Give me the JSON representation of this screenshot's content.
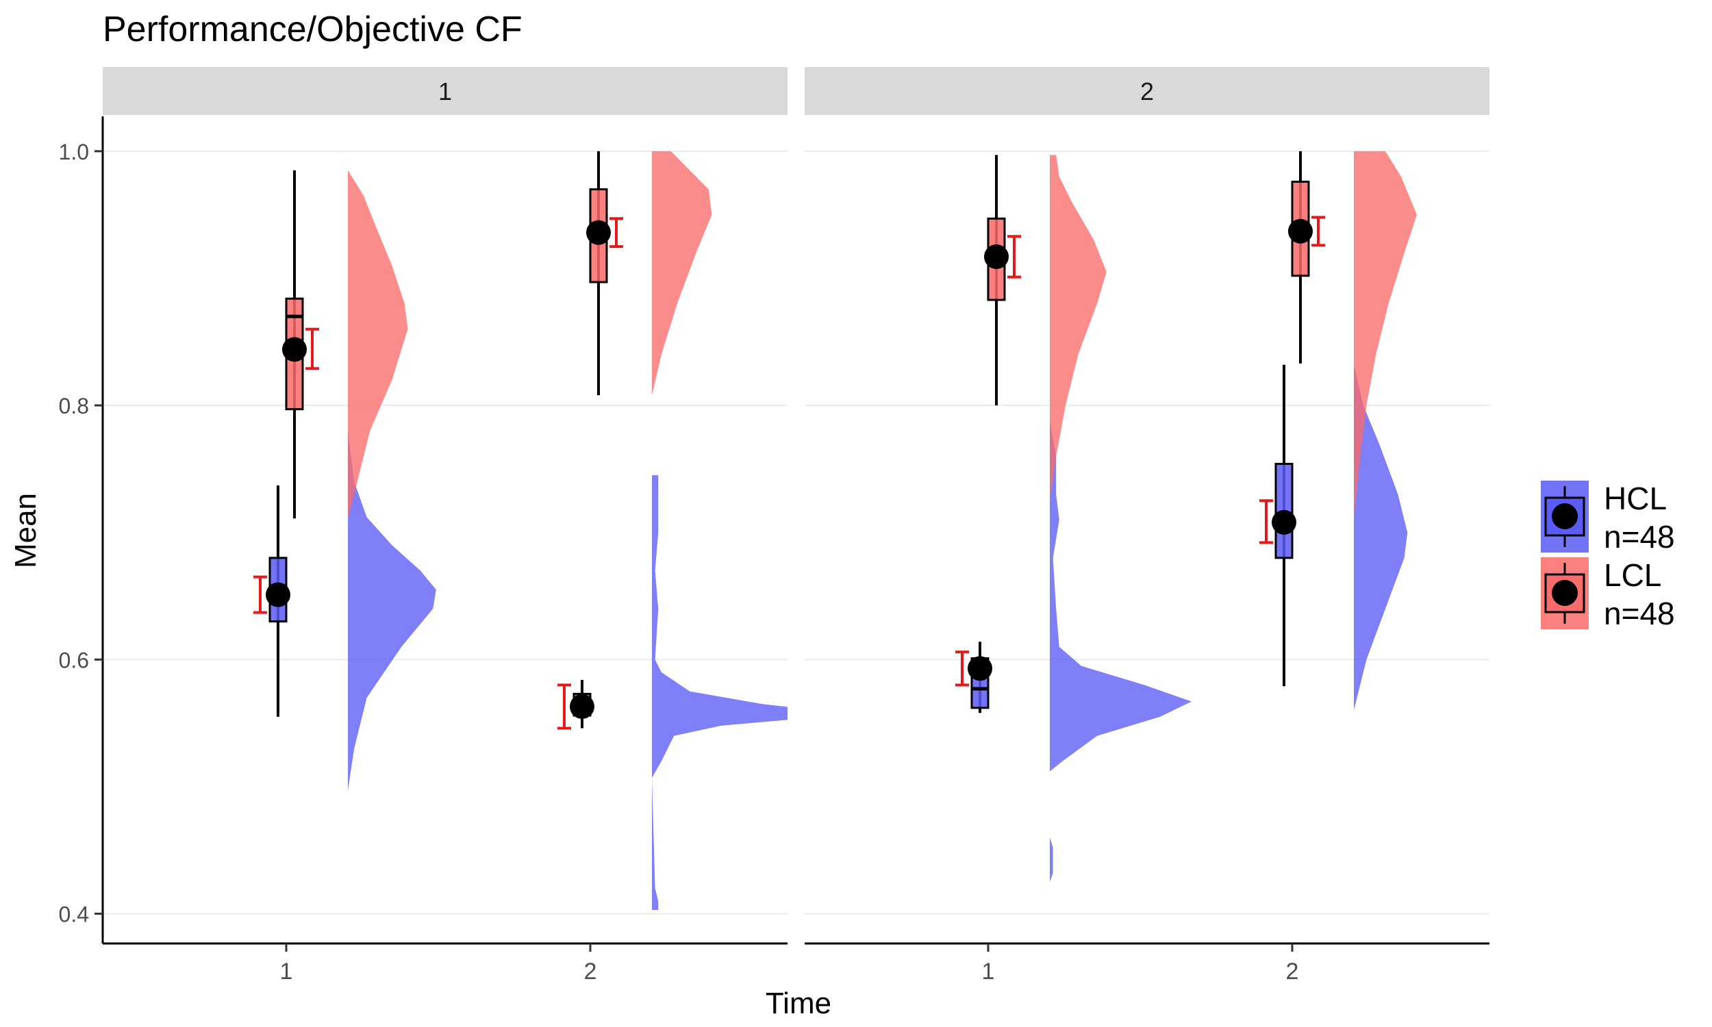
{
  "chart_data": {
    "type": "raincloud",
    "title": "Performance/Objective CF",
    "xlabel": "Time",
    "ylabel": "Mean",
    "ylim": [
      0.375,
      1.0
    ],
    "yticks": [
      "0.4",
      "0.6",
      "0.8",
      "1.0"
    ],
    "ytick_values": [
      0.4,
      0.6,
      0.8,
      1.0
    ],
    "xticks": [
      "1",
      "2"
    ],
    "grid": true,
    "legend_position": "right",
    "colors": {
      "HCL": "#5B5BF5",
      "LCL": "#FA6B6B",
      "errorbar": "#E31A1C"
    },
    "legend": [
      {
        "key": "HCL",
        "line1": "HCL",
        "line2": " n=48",
        "color": "#5B5BF5"
      },
      {
        "key": "LCL",
        "line1": "LCL",
        "line2": " n=48",
        "color": "#FA6B6B"
      }
    ],
    "panels": [
      {
        "label": "1",
        "groups": [
          {
            "group": "HCL",
            "time": 1,
            "mean": 0.651,
            "ci": [
              0.637,
              0.665
            ],
            "box": {
              "min": 0.555,
              "q1": 0.63,
              "median": 0.65,
              "q3": 0.68,
              "max": 0.737
            },
            "density": [
              [
                0.497,
                0.0
              ],
              [
                0.53,
                0.02
              ],
              [
                0.57,
                0.06
              ],
              [
                0.61,
                0.17
              ],
              [
                0.64,
                0.27
              ],
              [
                0.655,
                0.28
              ],
              [
                0.67,
                0.23
              ],
              [
                0.69,
                0.14
              ],
              [
                0.712,
                0.06
              ],
              [
                0.74,
                0.02
              ],
              [
                0.78,
                0.0
              ]
            ]
          },
          {
            "group": "HCL",
            "time": 2,
            "mean": 0.563,
            "ci": [
              0.546,
              0.58
            ],
            "box": {
              "min": 0.546,
              "q1": 0.556,
              "median": 0.562,
              "q3": 0.573,
              "max": 0.584
            },
            "density": [
              [
                0.403,
                0.02
              ],
              [
                0.41,
                0.02
              ],
              [
                0.42,
                0.01
              ],
              [
                0.507,
                0.0
              ],
              [
                0.52,
                0.03
              ],
              [
                0.54,
                0.07
              ],
              [
                0.548,
                0.22
              ],
              [
                0.553,
                0.45
              ],
              [
                0.558,
                0.6
              ],
              [
                0.565,
                0.35
              ],
              [
                0.575,
                0.12
              ],
              [
                0.59,
                0.03
              ],
              [
                0.6,
                0.01
              ],
              [
                0.64,
                0.02
              ],
              [
                0.67,
                0.01
              ],
              [
                0.7,
                0.02
              ],
              [
                0.745,
                0.02
              ]
            ]
          },
          {
            "group": "LCL",
            "time": 1,
            "mean": 0.844,
            "ci": [
              0.829,
              0.86
            ],
            "box": {
              "min": 0.711,
              "q1": 0.797,
              "median": 0.87,
              "q3": 0.884,
              "max": 0.985
            },
            "density": [
              [
                0.711,
                0.0
              ],
              [
                0.74,
                0.03
              ],
              [
                0.78,
                0.07
              ],
              [
                0.82,
                0.14
              ],
              [
                0.86,
                0.19
              ],
              [
                0.88,
                0.18
              ],
              [
                0.91,
                0.14
              ],
              [
                0.94,
                0.09
              ],
              [
                0.965,
                0.05
              ],
              [
                0.985,
                0.0
              ]
            ]
          },
          {
            "group": "LCL",
            "time": 2,
            "mean": 0.936,
            "ci": [
              0.925,
              0.947
            ],
            "box": {
              "min": 0.808,
              "q1": 0.897,
              "median": 0.935,
              "q3": 0.97,
              "max": 1.0
            },
            "density": [
              [
                0.808,
                0.0
              ],
              [
                0.84,
                0.03
              ],
              [
                0.88,
                0.08
              ],
              [
                0.92,
                0.14
              ],
              [
                0.95,
                0.19
              ],
              [
                0.97,
                0.18
              ],
              [
                0.985,
                0.12
              ],
              [
                1.0,
                0.06
              ]
            ]
          }
        ]
      },
      {
        "label": "2",
        "groups": [
          {
            "group": "HCL",
            "time": 1,
            "mean": 0.593,
            "ci": [
              0.58,
              0.606
            ],
            "box": {
              "min": 0.558,
              "q1": 0.562,
              "median": 0.577,
              "q3": 0.601,
              "max": 0.614
            },
            "density": [
              [
                0.425,
                0.0
              ],
              [
                0.432,
                0.01
              ],
              [
                0.44,
                0.01
              ],
              [
                0.452,
                0.01
              ],
              [
                0.46,
                0.0
              ],
              [
                0.512,
                0.0
              ],
              [
                0.52,
                0.04
              ],
              [
                0.54,
                0.15
              ],
              [
                0.555,
                0.35
              ],
              [
                0.567,
                0.45
              ],
              [
                0.58,
                0.3
              ],
              [
                0.595,
                0.1
              ],
              [
                0.61,
                0.03
              ],
              [
                0.64,
                0.02
              ],
              [
                0.68,
                0.01
              ],
              [
                0.71,
                0.03
              ],
              [
                0.73,
                0.02
              ],
              [
                0.76,
                0.02
              ],
              [
                0.788,
                0.0
              ]
            ]
          },
          {
            "group": "HCL",
            "time": 2,
            "mean": 0.708,
            "ci": [
              0.692,
              0.725
            ],
            "box": {
              "min": 0.579,
              "q1": 0.68,
              "median": 0.708,
              "q3": 0.754,
              "max": 0.832
            },
            "density": [
              [
                0.56,
                0.0
              ],
              [
                0.6,
                0.04
              ],
              [
                0.64,
                0.1
              ],
              [
                0.68,
                0.16
              ],
              [
                0.7,
                0.17
              ],
              [
                0.73,
                0.14
              ],
              [
                0.77,
                0.08
              ],
              [
                0.8,
                0.03
              ],
              [
                0.832,
                0.0
              ]
            ]
          },
          {
            "group": "LCL",
            "time": 1,
            "mean": 0.917,
            "ci": [
              0.901,
              0.933
            ],
            "box": {
              "min": 0.8,
              "q1": 0.883,
              "median": 0.915,
              "q3": 0.947,
              "max": 0.997
            },
            "density": [
              [
                0.725,
                0.0
              ],
              [
                0.76,
                0.02
              ],
              [
                0.8,
                0.05
              ],
              [
                0.84,
                0.09
              ],
              [
                0.88,
                0.15
              ],
              [
                0.905,
                0.18
              ],
              [
                0.93,
                0.14
              ],
              [
                0.96,
                0.07
              ],
              [
                0.98,
                0.03
              ],
              [
                0.997,
                0.02
              ]
            ]
          },
          {
            "group": "LCL",
            "time": 2,
            "mean": 0.937,
            "ci": [
              0.926,
              0.948
            ],
            "box": {
              "min": 0.833,
              "q1": 0.902,
              "median": 0.937,
              "q3": 0.976,
              "max": 1.0
            },
            "density": [
              [
                0.71,
                0.0
              ],
              [
                0.76,
                0.02
              ],
              [
                0.8,
                0.04
              ],
              [
                0.84,
                0.07
              ],
              [
                0.88,
                0.11
              ],
              [
                0.92,
                0.16
              ],
              [
                0.95,
                0.2
              ],
              [
                0.98,
                0.15
              ],
              [
                1.0,
                0.1
              ]
            ]
          }
        ]
      }
    ]
  }
}
